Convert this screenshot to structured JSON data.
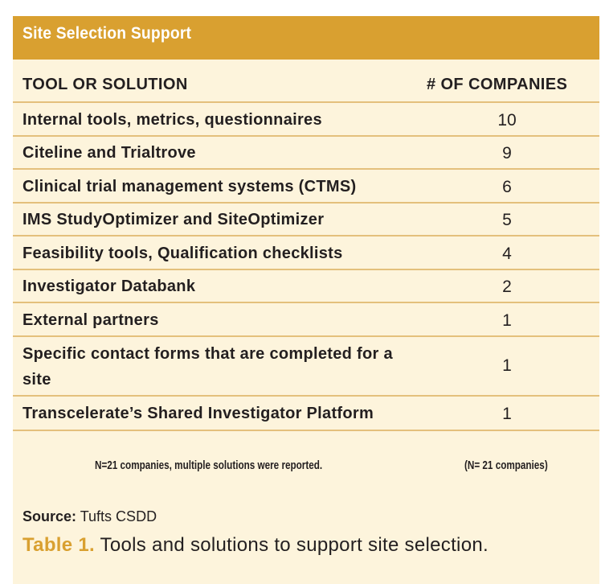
{
  "title": "Site Selection Support",
  "columns": {
    "tool": "TOOL OR SOLUTION",
    "count": "# OF COMPANIES"
  },
  "rows": [
    {
      "tool": "Internal tools, metrics, questionnaires",
      "count": "10"
    },
    {
      "tool": "Citeline and Trialtrove",
      "count": "9"
    },
    {
      "tool": "Clinical trial management systems (CTMS)",
      "count": "6"
    },
    {
      "tool": "IMS StudyOptimizer and SiteOptimizer",
      "count": "5"
    },
    {
      "tool": "Feasibility tools, Qualification checklists",
      "count": "4"
    },
    {
      "tool": "Investigator Databank",
      "count": "2"
    },
    {
      "tool": "External partners",
      "count": "1"
    },
    {
      "tool": "Specific contact forms that are completed for a site",
      "count": "1"
    },
    {
      "tool": "Transcelerate’s Shared Investigator Platform",
      "count": "1"
    }
  ],
  "footnotes": {
    "left": "N=21 companies, multiple solutions were reported.",
    "right": "(N= 21 companies)"
  },
  "source": {
    "label": "Source:",
    "value": "Tufts CSDD"
  },
  "caption": {
    "label": "Table 1.",
    "text": "Tools and solutions to support site selection."
  },
  "colors": {
    "header": "#d9a030",
    "panel": "#fdf4dc",
    "rule": "#e4c07c",
    "text": "#231f20"
  }
}
